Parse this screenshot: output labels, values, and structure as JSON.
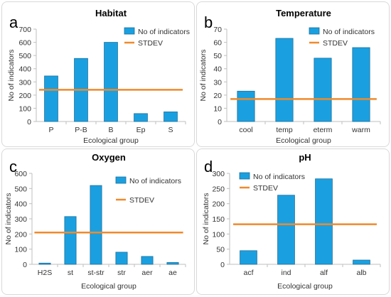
{
  "panel_letters": [
    "a",
    "b",
    "c",
    "d"
  ],
  "chart_data": [
    {
      "type": "bar",
      "title": "Habitat",
      "xlabel": "Ecological group",
      "ylabel": "No of indicators",
      "categories": [
        "P",
        "P-B",
        "B",
        "Ep",
        "S"
      ],
      "series": [
        {
          "name": "No of indicators",
          "values": [
            345,
            478,
            600,
            60,
            73
          ],
          "color": "#1aa0e0"
        }
      ],
      "stdev": {
        "name": "STDEV",
        "value": 240,
        "color": "#f08a2c"
      },
      "ylim": [
        0,
        700
      ],
      "yticks": [
        0,
        100,
        200,
        300,
        400,
        500,
        600,
        700
      ],
      "legend": "top-right",
      "grid": false
    },
    {
      "type": "bar",
      "title": "Temperature",
      "xlabel": "Ecological group",
      "ylabel": "No of indicators",
      "categories": [
        "cool",
        "temp",
        "eterm",
        "warm"
      ],
      "series": [
        {
          "name": "No of indicators",
          "values": [
            23,
            63,
            48,
            56
          ],
          "color": "#1aa0e0"
        }
      ],
      "stdev": {
        "name": "STDEV",
        "value": 17,
        "color": "#f08a2c"
      },
      "ylim": [
        0,
        70
      ],
      "yticks": [
        0,
        10,
        20,
        30,
        40,
        50,
        60,
        70
      ],
      "legend": "top-right",
      "grid": false
    },
    {
      "type": "bar",
      "title": "Oxygen",
      "xlabel": "Ecological group",
      "ylabel": "No of indicators",
      "categories": [
        "H2S",
        "st",
        "st-str",
        "str",
        "aer",
        "ae"
      ],
      "series": [
        {
          "name": "No of indicators",
          "values": [
            8,
            315,
            520,
            80,
            52,
            12
          ],
          "color": "#1aa0e0"
        }
      ],
      "stdev": {
        "name": "STDEV",
        "value": 210,
        "color": "#f08a2c"
      },
      "ylim": [
        0,
        600
      ],
      "yticks": [
        0,
        100,
        200,
        300,
        400,
        500,
        600
      ],
      "legend": "top-right",
      "grid": false
    },
    {
      "type": "bar",
      "title": "pH",
      "xlabel": "Ecological group",
      "ylabel": "No of indicators",
      "categories": [
        "acf",
        "ind",
        "alf",
        "alb"
      ],
      "series": [
        {
          "name": "No of indicators",
          "values": [
            45,
            228,
            282,
            14
          ],
          "color": "#1aa0e0"
        }
      ],
      "stdev": {
        "name": "STDEV",
        "value": 132,
        "color": "#f08a2c"
      },
      "ylim": [
        0,
        300
      ],
      "yticks": [
        0,
        50,
        100,
        150,
        200,
        250,
        300
      ],
      "legend": "top-left",
      "grid": false
    }
  ]
}
